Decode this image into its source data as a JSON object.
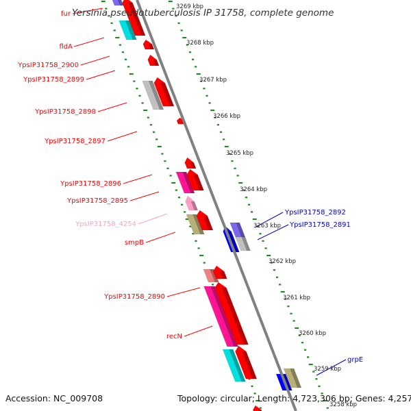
{
  "title": "Yersinia pseudotuberculosis IP 31758, complete genome",
  "footer": {
    "accession": "Accession: NC_009708",
    "topology": "Topology: circular; Length: 4,723,306 bp; Genes: 4,257"
  },
  "colors": {
    "backbone": "#808080",
    "tick": "#1e8a1e",
    "gene_red": "#ff0000",
    "gene_pink": "#ff1493",
    "gene_lightpink": "#ff9ec8",
    "gene_cyan": "#00e0e0",
    "gene_gray": "#c0c0c0",
    "gene_olive": "#b8b078",
    "gene_salmon": "#f08080",
    "gene_blue": "#0000ff",
    "gene_purple": "#7b68ee",
    "label_red": "#ff0000",
    "label_blue": "#0000c8",
    "label_pink": "#ff9ec8"
  },
  "tracks": {
    "kbp_ticks": [
      "3269 kbp",
      "3268 kbp",
      "3267 kbp",
      "3266 kbp",
      "3265 kbp",
      "3264 kbp",
      "3263 kbp",
      "3262 kbp",
      "3261 kbp",
      "3260 kbp",
      "3259 kbp",
      "3258 kbp"
    ]
  },
  "labels": {
    "left": [
      {
        "text": "fur",
        "color": "label_red"
      },
      {
        "text": "fldA",
        "color": "label_red"
      },
      {
        "text": "YpsIP31758_2900",
        "color": "label_red"
      },
      {
        "text": "YpsIP31758_2899",
        "color": "label_red"
      },
      {
        "text": "YpsIP31758_2898",
        "color": "label_red"
      },
      {
        "text": "YpsIP31758_2897",
        "color": "label_red"
      },
      {
        "text": "YpsIP31758_2896",
        "color": "label_red"
      },
      {
        "text": "YpsIP31758_2895",
        "color": "label_red"
      },
      {
        "text": "YpsIP31758_4254",
        "color": "label_pink"
      },
      {
        "text": "smpB",
        "color": "label_red"
      },
      {
        "text": "YpsIP31758_2890",
        "color": "label_red"
      },
      {
        "text": "recN",
        "color": "label_red"
      }
    ],
    "right": [
      {
        "text": "YpsIP31758_2892",
        "color": "label_blue"
      },
      {
        "text": "YpsIP31758_2891",
        "color": "label_blue"
      },
      {
        "text": "grpE",
        "color": "label_blue"
      }
    ]
  }
}
